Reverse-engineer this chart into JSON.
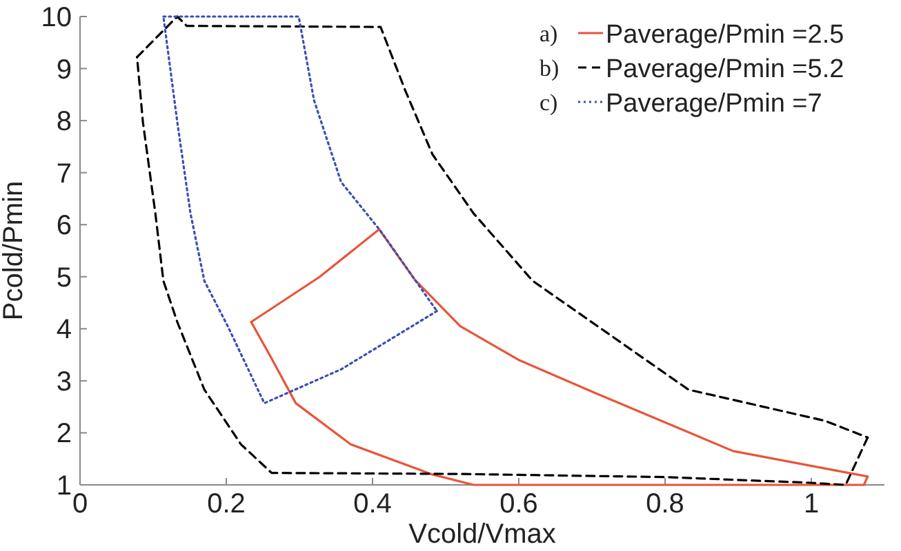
{
  "chart_data": {
    "type": "line",
    "xlabel": "Vcold/Vmax",
    "ylabel": "Pcold/Pmin",
    "xlim": [
      0,
      1.1
    ],
    "ylim": [
      1,
      10
    ],
    "xticks": [
      0,
      0.2,
      0.4,
      0.6,
      0.8,
      1
    ],
    "yticks": [
      1,
      2,
      3,
      4,
      5,
      6,
      7,
      8,
      9,
      10
    ],
    "grid": false,
    "legend": "top right",
    "marker": "none",
    "annotations": [
      "a)",
      "b)",
      "c)"
    ],
    "series": [
      {
        "name": "Paverage/Pmin =2.5",
        "color": "#e8553a",
        "line_style": "solid",
        "x": [
          0.234,
          0.327,
          0.409,
          0.458,
          0.52,
          0.6,
          0.707,
          0.893,
          1.077
        ],
        "values": [
          4.13,
          4.99,
          5.91,
          4.94,
          4.05,
          3.4,
          2.75,
          1.65,
          1.16
        ]
      },
      {
        "color": "#e8553a",
        "line_style": "solid",
        "x": [
          1.077,
          1.072,
          0.8,
          0.538,
          0.482,
          0.37,
          0.295,
          0.258,
          0.234
        ],
        "values": [
          1.16,
          1.0,
          1.0,
          1.0,
          1.2,
          1.78,
          2.57,
          3.53,
          4.13
        ]
      },
      {
        "name": "Paverage/Pmin =5.2",
        "color": "#000000",
        "line_style": "dashed",
        "x": [
          0.078,
          0.133,
          0.146,
          0.411,
          0.445,
          0.482,
          0.538,
          0.619,
          0.832,
          1.019,
          1.077
        ],
        "values": [
          9.22,
          10,
          9.82,
          9.8,
          8.57,
          7.35,
          6.22,
          4.92,
          2.83,
          2.23,
          1.91
        ]
      },
      {
        "color": "#000000",
        "line_style": "dashed",
        "x": [
          1.077,
          1.047,
          1.0,
          0.8,
          0.52,
          0.262,
          0.22,
          0.17,
          0.133,
          0.114,
          0.103,
          0.086,
          0.078
        ],
        "values": [
          1.91,
          1.0,
          1.04,
          1.15,
          1.21,
          1.23,
          1.78,
          2.83,
          4.13,
          4.92,
          6.22,
          7.97,
          9.22
        ]
      },
      {
        "name": "Paverage/Pmin =7",
        "color": "#3a4fb5",
        "line_style": "dotted",
        "x": [
          0.114,
          0.299,
          0.32,
          0.357,
          0.411,
          0.458,
          0.488
        ],
        "values": [
          10,
          10,
          8.39,
          6.82,
          5.88,
          4.94,
          4.34
        ]
      },
      {
        "color": "#3a4fb5",
        "line_style": "dotted",
        "x": [
          0.488,
          0.357,
          0.252,
          0.202,
          0.17,
          0.151,
          0.133,
          0.114
        ],
        "values": [
          4.34,
          3.22,
          2.57,
          4.05,
          4.92,
          6.22,
          7.97,
          10
        ]
      }
    ]
  }
}
